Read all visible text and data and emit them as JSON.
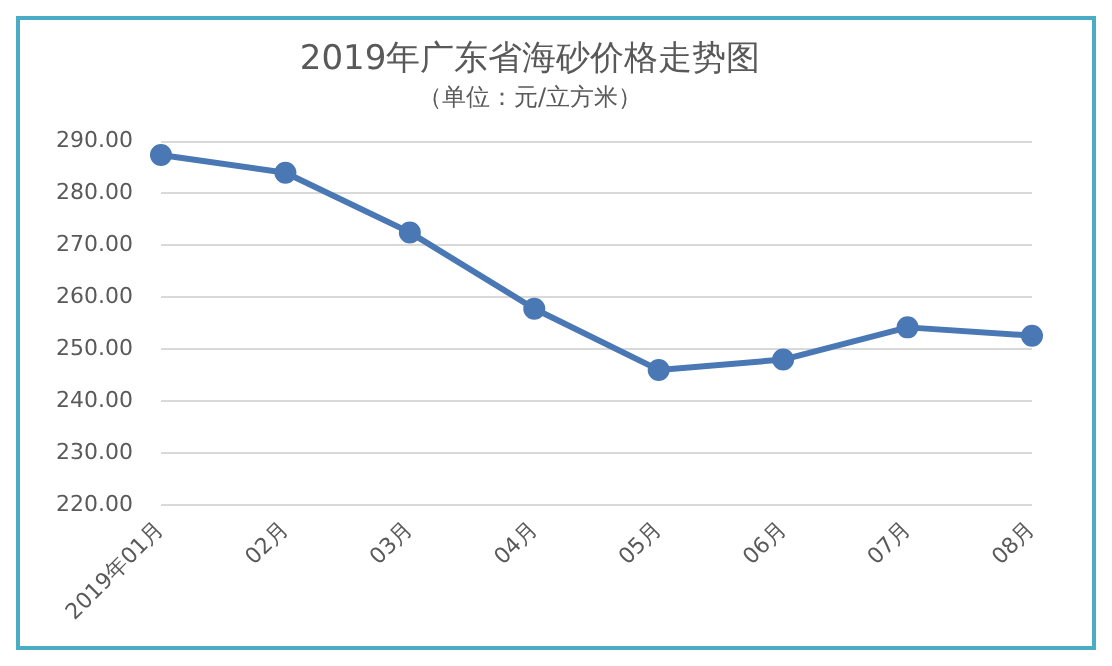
{
  "chart_data": {
    "type": "line",
    "title": "2019年广东省海砂价格走势图",
    "subtitle": "（单位：元/立方米）",
    "categories": [
      "2019年01月",
      "02月",
      "03月",
      "04月",
      "05月",
      "06月",
      "07月",
      "08月"
    ],
    "series": [
      {
        "color": "#4a78b4",
        "values": [
          287.4,
          284,
          272.5,
          257.8,
          246,
          248,
          254.2,
          252.6
        ]
      }
    ],
    "ylim": [
      220,
      290
    ],
    "yticks": [
      {
        "value": 220,
        "label": "220.00"
      },
      {
        "value": 230,
        "label": "230.00"
      },
      {
        "value": 240,
        "label": "240.00"
      },
      {
        "value": 250,
        "label": "250.00"
      },
      {
        "value": 260,
        "label": "260.00"
      },
      {
        "value": 270,
        "label": "270.00"
      },
      {
        "value": 280,
        "label": "280.00"
      },
      {
        "value": 290,
        "label": "290.00"
      }
    ],
    "grid": "y",
    "marker": "circle",
    "line_style": "solid",
    "legend": false
  }
}
